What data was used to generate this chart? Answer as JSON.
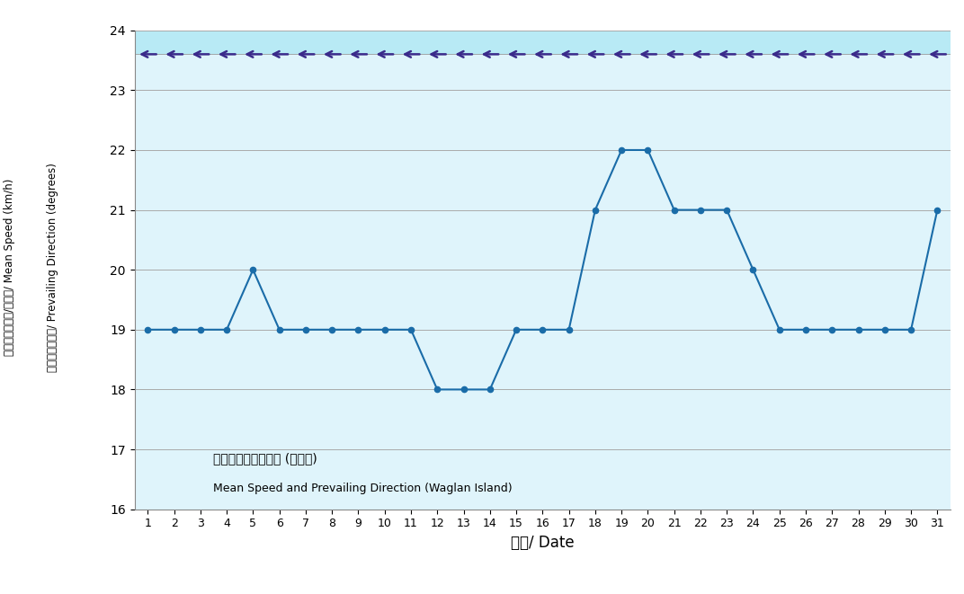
{
  "title": "",
  "xlabel": "日期/ Date",
  "ylabel_line1_zh": "平均風速（公里/小時）/ Mean Speed (km/h)",
  "ylabel_line2_zh": "盛行風向（度）/ Prevailing Direction (degrees)",
  "days": [
    1,
    2,
    3,
    4,
    5,
    6,
    7,
    8,
    9,
    10,
    11,
    12,
    13,
    14,
    15,
    16,
    17,
    18,
    19,
    20,
    21,
    22,
    23,
    24,
    25,
    26,
    27,
    28,
    29,
    30,
    31
  ],
  "speed": [
    19,
    19,
    19,
    19,
    20,
    19,
    19,
    19,
    19,
    19,
    19,
    18,
    18,
    18,
    19,
    19,
    19,
    21,
    22,
    22,
    21,
    21,
    21,
    20,
    19,
    19,
    19,
    19,
    19,
    19,
    21
  ],
  "direction_value": 23.6,
  "ylim": [
    16,
    24
  ],
  "yticks": [
    16,
    17,
    18,
    19,
    20,
    21,
    22,
    23,
    24
  ],
  "line_color": "#1a6ca8",
  "marker_color": "#1a6ca8",
  "arrow_color": "#3a2a8a",
  "bg_color_upper": "#b8eaf5",
  "bg_color_lower": "#dff4fb",
  "annotation_zh": "平均風速及盛行風向 (橫瀒島)",
  "annotation_en": "Mean Speed and Prevailing Direction (Waglan Island)"
}
